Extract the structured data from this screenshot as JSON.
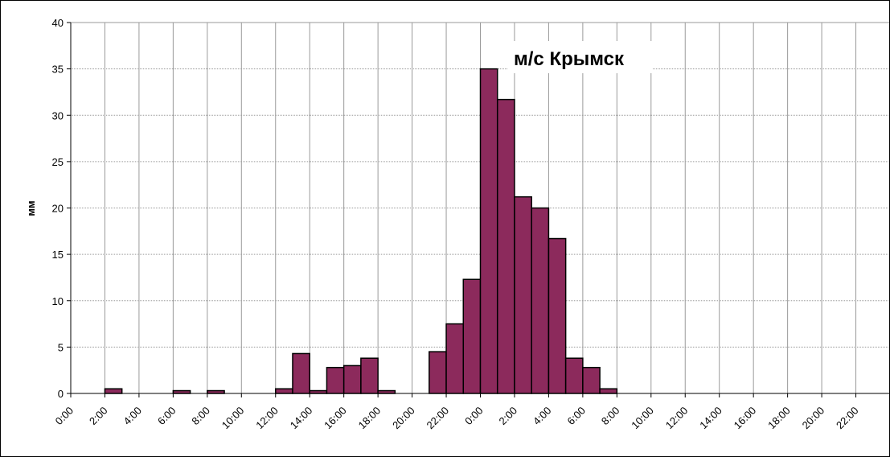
{
  "chart_data": {
    "type": "bar",
    "title": "м/с Крымск",
    "xlabel": "",
    "ylabel": "мм",
    "ylim": [
      0,
      40
    ],
    "yticks": [
      0,
      5,
      10,
      15,
      20,
      25,
      30,
      35,
      40
    ],
    "xtick_labels": [
      "0:00",
      "2:00",
      "4:00",
      "6:00",
      "8:00",
      "10:00",
      "12:00",
      "14:00",
      "16:00",
      "18:00",
      "20:00",
      "22:00",
      "0:00",
      "2:00",
      "4:00",
      "6:00",
      "8:00",
      "10:00",
      "12:00",
      "14:00",
      "16:00",
      "18:00",
      "20:00",
      "22:00"
    ],
    "grid": true,
    "bar_color": "#8c2a5c",
    "series": [
      {
        "values": [
          0,
          0,
          0.5,
          0,
          0,
          0,
          0.3,
          0,
          0.3,
          0,
          0,
          0,
          0.5,
          4.3,
          0.3,
          2.8,
          3.0,
          3.8,
          0.3,
          0,
          0,
          4.5,
          7.5,
          12.3,
          35.0,
          31.7,
          21.2,
          20.0,
          16.7,
          3.8,
          2.8,
          0.5,
          0,
          0,
          0,
          0,
          0,
          0,
          0,
          0,
          0,
          0,
          0,
          0,
          0,
          0,
          0,
          0
        ]
      }
    ]
  }
}
